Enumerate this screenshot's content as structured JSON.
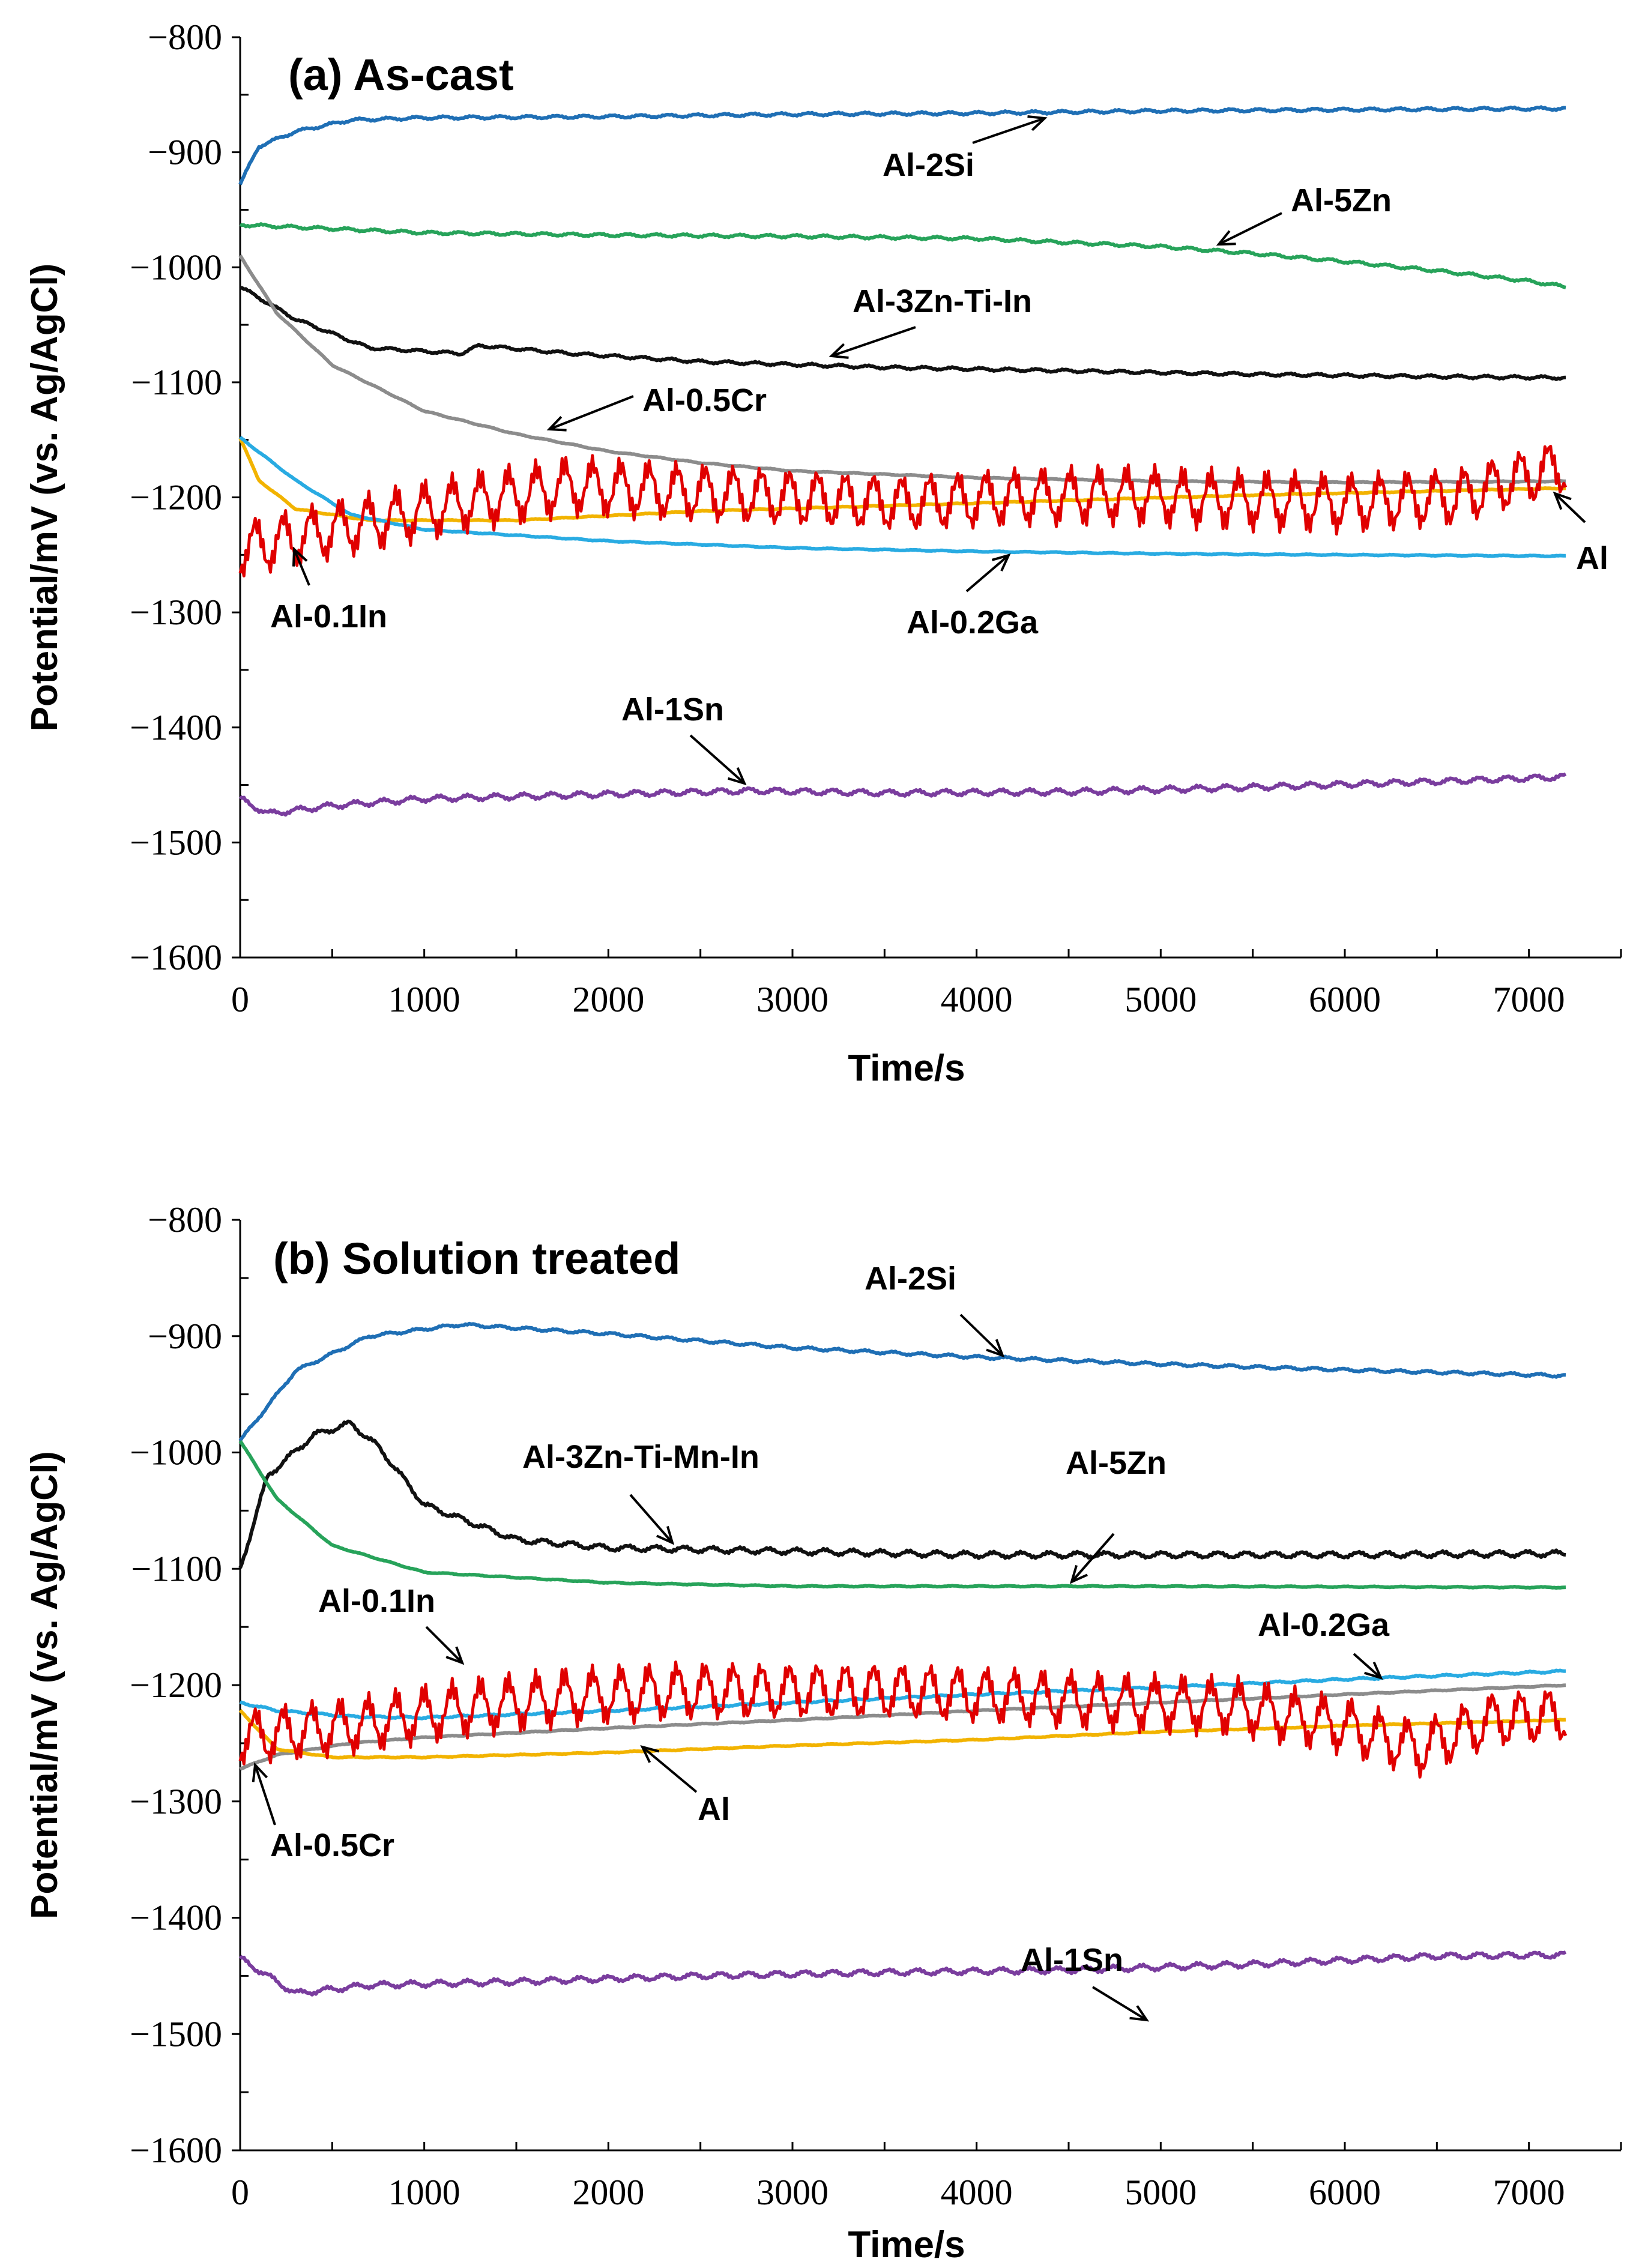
{
  "chart_data": [
    {
      "type": "line",
      "title": "(a) As-cast",
      "xlabel": "Time/s",
      "ylabel": "Potential/mV (vs. Ag/AgCl)",
      "xlim": [
        0,
        7500
      ],
      "ylim": [
        -1600,
        -800
      ],
      "xticks": [
        "0",
        "1000",
        "2000",
        "3000",
        "4000",
        "5000",
        "6000",
        "7000"
      ],
      "yticks": [
        "−800",
        "−900",
        "−1000",
        "−1100",
        "−1200",
        "−1300",
        "−1400",
        "−1500",
        "−1600"
      ],
      "series": [
        {
          "name": "Al-2Si",
          "color": "#1f6fb5",
          "x": [
            0,
            100,
            300,
            600,
            1000,
            2000,
            3000,
            4000,
            5000,
            6000,
            7200
          ],
          "y": [
            -928,
            -895,
            -882,
            -872,
            -870,
            -869,
            -867,
            -866,
            -864,
            -863,
            -862
          ],
          "noise": 1.5
        },
        {
          "name": "Al-5Zn",
          "color": "#27a35a",
          "x": [
            0,
            1000,
            2000,
            3000,
            4000,
            5000,
            5500,
            6000,
            6500,
            7000,
            7200
          ],
          "y": [
            -963,
            -970,
            -972,
            -973,
            -975,
            -982,
            -988,
            -995,
            -1003,
            -1012,
            -1017
          ],
          "noise": 1.5
        },
        {
          "name": "Al-3Zn-Ti-In",
          "color": "#111111",
          "x": [
            0,
            300,
            700,
            1200,
            1300,
            1800,
            2500,
            3500,
            4500,
            5500,
            6500,
            7200
          ],
          "y": [
            -1017,
            -1045,
            -1070,
            -1075,
            -1068,
            -1075,
            -1082,
            -1087,
            -1090,
            -1093,
            -1095,
            -1096
          ],
          "noise": 1.5
        },
        {
          "name": "Al-0.5Cr",
          "color": "#8c8c8c",
          "x": [
            0,
            200,
            500,
            1000,
            1500,
            2000,
            2500,
            3000,
            4000,
            5000,
            6000,
            7200
          ],
          "y": [
            -990,
            -1040,
            -1085,
            -1125,
            -1145,
            -1160,
            -1170,
            -1177,
            -1183,
            -1186,
            -1187,
            -1186
          ],
          "noise": 0.5
        },
        {
          "name": "Al",
          "color": "#f2b300",
          "x": [
            0,
            100,
            300,
            700,
            1500,
            2500,
            4000,
            5500,
            7200
          ],
          "y": [
            -1148,
            -1185,
            -1210,
            -1220,
            -1220,
            -1212,
            -1205,
            -1198,
            -1192
          ],
          "noise": 0.5
        },
        {
          "name": "Al-0.2Ga",
          "color": "#29abe2",
          "x": [
            0,
            300,
            600,
            1000,
            2000,
            3000,
            4000,
            5000,
            6000,
            7200
          ],
          "y": [
            -1148,
            -1185,
            -1215,
            -1228,
            -1238,
            -1244,
            -1247,
            -1249,
            -1250,
            -1251
          ],
          "noise": 0.5
        },
        {
          "name": "Al-0.1In",
          "color": "#e00000",
          "x": [
            0,
            600,
            1200,
            1800,
            2400,
            3000,
            3600,
            4200,
            4800,
            5400,
            6000,
            6600,
            7200
          ],
          "y": [
            -1245,
            -1225,
            -1205,
            -1190,
            -1195,
            -1200,
            -1205,
            -1200,
            -1198,
            -1202,
            -1205,
            -1200,
            -1172
          ],
          "noise": 28
        },
        {
          "name": "Al-1Sn",
          "color": "#7a3d9e",
          "x": [
            0,
            150,
            500,
            1000,
            2000,
            2800,
            3500,
            4500,
            5500,
            6500,
            7200
          ],
          "y": [
            -1462,
            -1475,
            -1468,
            -1462,
            -1458,
            -1455,
            -1457,
            -1456,
            -1452,
            -1447,
            -1443
          ],
          "noise": 3
        }
      ],
      "annotations": [
        "Al-2Si",
        "Al-5Zn",
        "Al-3Zn-Ti-In",
        "Al-0.5Cr",
        "Al",
        "Al-0.1In",
        "Al-0.2Ga",
        "Al-1Sn"
      ]
    },
    {
      "type": "line",
      "title": "(b) Solution treated",
      "xlabel": "Time/s",
      "ylabel": "Potential/mV (vs. Ag/AgCl)",
      "xlim": [
        0,
        7500
      ],
      "ylim": [
        -1600,
        -800
      ],
      "xticks": [
        "0",
        "1000",
        "2000",
        "3000",
        "4000",
        "5000",
        "6000",
        "7000"
      ],
      "yticks": [
        "−800",
        "−900",
        "−1000",
        "−1100",
        "−1200",
        "−1300",
        "−1400",
        "−1500",
        "−1600"
      ],
      "series": [
        {
          "name": "Al-2Si",
          "color": "#1f6fb5",
          "x": [
            0,
            300,
            700,
            1200,
            2000,
            3000,
            4000,
            5000,
            6000,
            7200
          ],
          "y": [
            -990,
            -930,
            -900,
            -890,
            -898,
            -910,
            -918,
            -924,
            -929,
            -934
          ],
          "noise": 1.5
        },
        {
          "name": "Al-3Zn-Ti-Mn-In",
          "color": "#111111",
          "x": [
            0,
            150,
            400,
            600,
            750,
            1000,
            1500,
            2000,
            3000,
            4000,
            5000,
            6000,
            7200
          ],
          "y": [
            -1100,
            -1020,
            -985,
            -975,
            -995,
            -1045,
            -1075,
            -1082,
            -1085,
            -1088,
            -1088,
            -1088,
            -1087
          ],
          "noise": 3
        },
        {
          "name": "Al-5Zn",
          "color": "#27a35a",
          "x": [
            0,
            200,
            500,
            1000,
            2000,
            3000,
            5000,
            7200
          ],
          "y": [
            -990,
            -1040,
            -1080,
            -1103,
            -1112,
            -1115,
            -1115,
            -1116
          ],
          "noise": 0.5
        },
        {
          "name": "Al-0.2Ga",
          "color": "#29abe2",
          "x": [
            0,
            200,
            600,
            1000,
            2000,
            3000,
            4000,
            5000,
            6000,
            7200
          ],
          "y": [
            -1215,
            -1222,
            -1227,
            -1228,
            -1222,
            -1215,
            -1208,
            -1202,
            -1195,
            -1188
          ],
          "noise": 1
        },
        {
          "name": "Al-0.5Cr",
          "color": "#8c8c8c",
          "x": [
            0,
            200,
            600,
            1000,
            2000,
            3000,
            4000,
            5000,
            6000,
            7200
          ],
          "y": [
            -1272,
            -1260,
            -1250,
            -1245,
            -1237,
            -1230,
            -1222,
            -1215,
            -1208,
            -1200
          ],
          "noise": 0.5
        },
        {
          "name": "Al",
          "color": "#f2b300",
          "x": [
            0,
            200,
            500,
            1000,
            2000,
            3000,
            4000,
            5000,
            6000,
            7200
          ],
          "y": [
            -1222,
            -1255,
            -1262,
            -1262,
            -1258,
            -1252,
            -1247,
            -1240,
            -1235,
            -1230
          ],
          "noise": 0.5
        },
        {
          "name": "Al-0.1In",
          "color": "#e00000",
          "x": [
            0,
            600,
            1200,
            1800,
            2400,
            3000,
            3600,
            4200,
            4800,
            5400,
            6000,
            6400,
            6800,
            7200
          ],
          "y": [
            -1245,
            -1235,
            -1220,
            -1210,
            -1205,
            -1205,
            -1205,
            -1210,
            -1215,
            -1218,
            -1235,
            -1255,
            -1230,
            -1225
          ],
          "noise": 27
        },
        {
          "name": "Al-1Sn",
          "color": "#7a3d9e",
          "x": [
            0,
            300,
            700,
            1500,
            2500,
            3500,
            4500,
            5500,
            6500,
            7200
          ],
          "y": [
            -1435,
            -1465,
            -1458,
            -1455,
            -1450,
            -1447,
            -1445,
            -1440,
            -1433,
            -1432
          ],
          "noise": 3
        }
      ],
      "annotations": [
        "Al-2Si",
        "Al-3Zn-Ti-Mn-In",
        "Al-5Zn",
        "Al-0.1In",
        "Al-0.2Ga",
        "Al",
        "Al-0.5Cr",
        "Al-1Sn"
      ]
    }
  ]
}
